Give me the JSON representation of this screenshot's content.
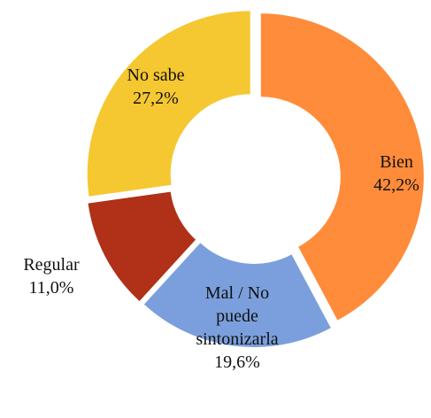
{
  "chart_data": {
    "type": "donut",
    "categories": [
      "Bien",
      "Mal / No puede sintonizarla",
      "Regular",
      "No sabe"
    ],
    "values": [
      42.2,
      19.6,
      11.0,
      27.2
    ],
    "value_labels": [
      "42,2%",
      "19,6%",
      "11,0%",
      "27,2%"
    ],
    "colors": [
      "#ff8c3a",
      "#7b9fdc",
      "#b03018",
      "#f5c832"
    ]
  }
}
